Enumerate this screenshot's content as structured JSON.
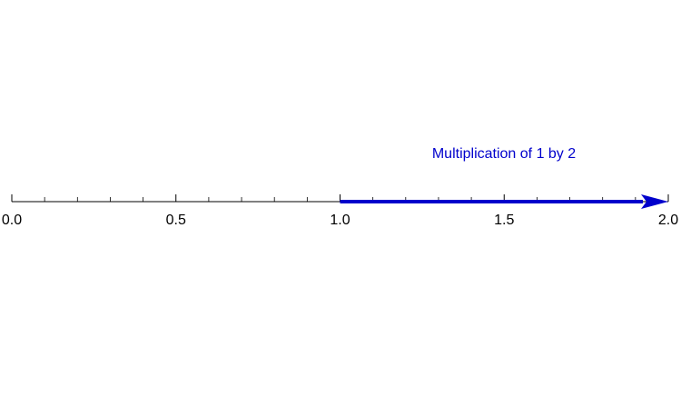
{
  "annotation": {
    "text": "Multiplication of 1 by 2",
    "color": "#0000cc"
  },
  "axis": {
    "min": 0.0,
    "max": 2.0,
    "major_ticks": [
      0.0,
      0.5,
      1.0,
      1.5,
      2.0
    ],
    "major_labels": [
      "0.0",
      "0.5",
      "1.0",
      "1.5",
      "2.0"
    ],
    "minor_step": 0.1,
    "color": "#000000"
  },
  "arrow": {
    "from": 1.0,
    "to": 2.0,
    "color": "#0000cc"
  }
}
